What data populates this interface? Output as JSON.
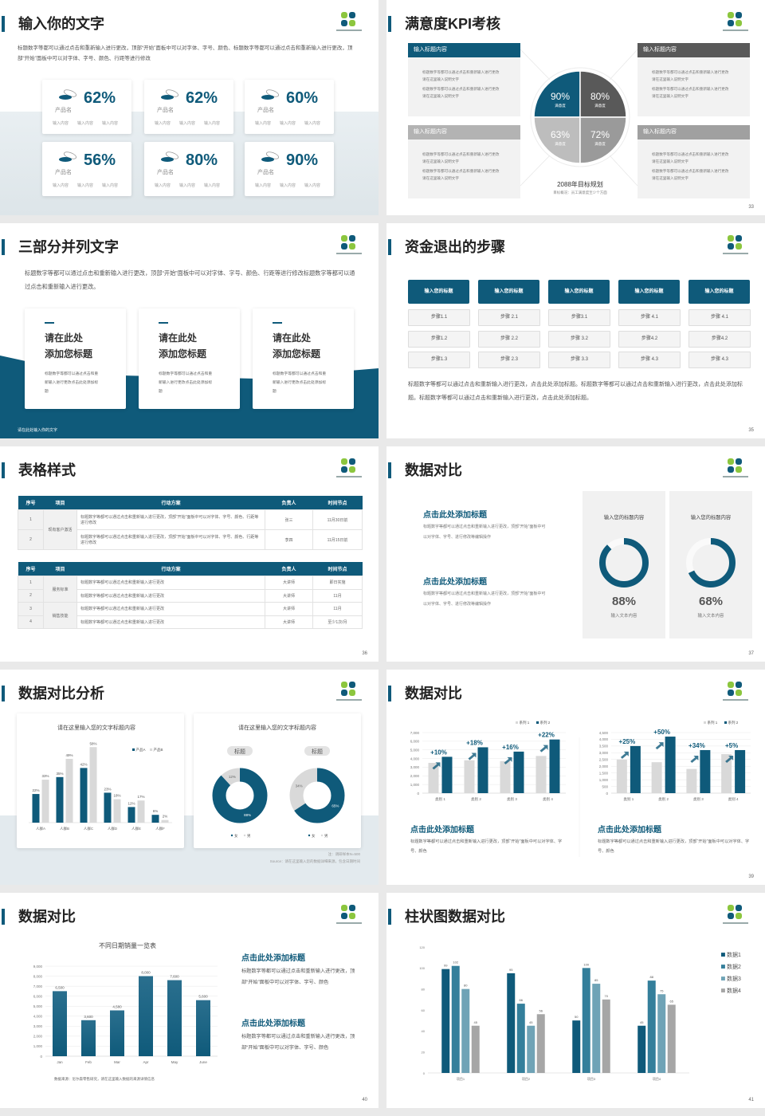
{
  "colors": {
    "primary": "#0f5a7a",
    "dark_gray": "#595959",
    "mid_gray": "#a6a6a6",
    "light_gray": "#d9d9d9",
    "logo_green": "#8cc63e"
  },
  "slides": [
    {
      "page": "32",
      "title": "输入你的文字",
      "body": "标题数字等都可以通过点击和重新输入进行更改，顶部“开始”面板中可以对字体、字号、颜色、标题数字等都可以通过点击和重新输入进行更改，顶部“开始”面板中可以对字体、字号、颜色、行距等进行修改",
      "cards": [
        {
          "value": "62%",
          "label": "产品名",
          "items": [
            "输入内容",
            "输入内容",
            "输入内容"
          ]
        },
        {
          "value": "62%",
          "label": "产品名",
          "items": [
            "输入内容",
            "输入内容",
            "输入内容"
          ]
        },
        {
          "value": "60%",
          "label": "产品名",
          "items": [
            "输入内容",
            "输入内容",
            "输入内容"
          ]
        },
        {
          "value": "56%",
          "label": "产品名",
          "items": [
            "输入内容",
            "输入内容",
            "输入内容"
          ]
        },
        {
          "value": "80%",
          "label": "产品名",
          "items": [
            "输入内容",
            "输入内容",
            "输入内容"
          ]
        },
        {
          "value": "90%",
          "label": "产品名",
          "items": [
            "输入内容",
            "输入内容",
            "输入内容"
          ]
        }
      ]
    },
    {
      "page": "33",
      "title": "满意度KPI考核",
      "boxes": [
        {
          "header": "输入标题内容",
          "color": "#0f5a7a",
          "bullets": [
            "标题数字等都可以通过点击和重新输入进行更改 请在这里输入说明文字",
            "标题数字等都可以通过点击和重新输入进行更改 请在这里输入说明文字"
          ]
        },
        {
          "header": "输入标题内容",
          "color": "#595959",
          "bullets": [
            "标题数字等都可以通过点击和重新输入进行更改 请在这里输入说明文字",
            "标题数字等都可以通过点击和重新输入进行更改 请在这里输入说明文字"
          ]
        },
        {
          "header": "输入标题内容",
          "color": "#b3b3b3",
          "bullets": [
            "标题数字等都可以通过点击和重新输入进行更改 请在这里输入说明文字",
            "标题数字等都可以通过点击和重新输入进行更改 请在这里输入说明文字"
          ]
        },
        {
          "header": "输入标题内容",
          "color": "#a0a0a0",
          "bullets": [
            "标题数字等都可以通过点击和重新输入进行更改 请在这里输入说明文字",
            "标题数字等都可以通过点击和重新输入进行更改 请在这里输入说明文字"
          ]
        }
      ],
      "pie": [
        {
          "value": "90%",
          "label": "满意度",
          "color": "#0f5a7a"
        },
        {
          "value": "80%",
          "label": "满意度",
          "color": "#595959"
        },
        {
          "value": "63%",
          "label": "满意度",
          "color": "#bdbdbd"
        },
        {
          "value": "72%",
          "label": "满意度",
          "color": "#9a9a9a"
        }
      ],
      "goal_title": "2088年目标规划",
      "goal_sub": "目标概况：员工满意度至少个方面"
    },
    {
      "page": "34",
      "title": "三部分并列文字",
      "body": "标题数字等都可以通过点击和重新输入进行更改，顶部“开始”面板中可以对字体、字号、颜色、行距等进行修改标题数字等都可以通过点击和重新输入进行更改。",
      "cards": [
        {
          "line1": "请在此处",
          "line2": "添加您标题",
          "text": "标题数字等都可以通过点击和重新输入进行更改点击此处添加标题"
        },
        {
          "line1": "请在此处",
          "line2": "添加您标题",
          "text": "标题数字等都可以通过点击和重新输入进行更改点击此处添加标题"
        },
        {
          "line1": "请在此处",
          "line2": "添加您标题",
          "text": "标题数字等都可以通过点击和重新输入进行更改点击此处添加标题"
        }
      ],
      "footer": "请在此处输入你的文字"
    },
    {
      "page": "35",
      "title": "资金退出的步骤",
      "columns": [
        {
          "header": "输入您的标题",
          "steps": [
            "步骤1.1",
            "步骤1.2",
            "步骤1.3"
          ]
        },
        {
          "header": "输入您的标题",
          "steps": [
            "步骤 2.1",
            "步骤 2.2",
            "步骤 2.3"
          ]
        },
        {
          "header": "输入您的标题",
          "steps": [
            "步骤3.1",
            "步骤 3.2",
            "步骤 3.3"
          ]
        },
        {
          "header": "输入您的标题",
          "steps": [
            "步骤 4.1",
            "步骤4.2",
            "步骤 4.3"
          ]
        },
        {
          "header": "输入您的标题",
          "steps": [
            "步骤 4.1",
            "步骤4.2",
            "步骤 4.3"
          ]
        }
      ],
      "body": "标题数字等都可以通过点击和重新输入进行更改，点击此处添加标题。标题数字等都可以通过点击和重新输入进行更改，点击此处添加标题。标题数字等都可以通过点击和重新输入进行更改，点击此处添加标题。"
    },
    {
      "page": "36",
      "title": "表格样式",
      "tables": [
        {
          "headers": [
            "序号",
            "项目",
            "行动方案",
            "负责人",
            "时间节点"
          ],
          "groups": [
            {
              "name": "现有客户激活",
              "rows": [
                {
                  "no": "1",
                  "plan": "标题数字等都可以通过点击和重新输入进行更改，顶部“开始”面板中可以对字体、字号、颜色、行距等进行修改",
                  "owner": "张三",
                  "time": "11月30日前"
                },
                {
                  "no": "2",
                  "plan": "标题数字等都可以通过点击和重新输入进行更改，顶部“开始”面板中可以对字体、字号、颜色、行距等进行修改",
                  "owner": "李四",
                  "time": "11月15日前"
                }
              ]
            }
          ]
        },
        {
          "headers": [
            "序号",
            "项目",
            "行动方案",
            "负责人",
            "时间节点"
          ],
          "groups": [
            {
              "name": "服务标准",
              "rows": [
                {
                  "no": "1",
                  "plan": "标题数字等都可以通过点击和重新输入进行更改",
                  "owner": "大讲师",
                  "time": "即日实施"
                },
                {
                  "no": "2",
                  "plan": "标题数字等都可以通过点击和重新输入进行更改",
                  "owner": "大讲师",
                  "time": "11月"
                }
              ]
            },
            {
              "name": "销售技能",
              "rows": [
                {
                  "no": "3",
                  "plan": "标题数字等都可以通过点击和重新输入进行更改",
                  "owner": "大讲师",
                  "time": "11月"
                },
                {
                  "no": "4",
                  "plan": "标题数字等都可以通过点击和重新输入进行更改",
                  "owner": "大讲师",
                  "time": "至少1次/月"
                }
              ]
            }
          ]
        }
      ]
    },
    {
      "page": "37",
      "title": "数据对比",
      "items": [
        {
          "heading": "点击此处添加标题",
          "text": "标题数字等都可以通过点击和重新输入进行更改，顶部“开始”面板中可以对字体、字号、进行修改等编辑操作"
        },
        {
          "heading": "点击此处添加标题",
          "text": "标题数字等都可以通过点击和重新输入进行更改，顶部“开始”面板中可以对字体、字号、进行修改等编辑操作"
        }
      ],
      "panels": [
        {
          "title": "输入您的标题内容",
          "percent": 88,
          "value": "88%",
          "caption": "输入文本内容"
        },
        {
          "title": "输入您的标题内容",
          "percent": 68,
          "value": "68%",
          "caption": "输入文本内容"
        }
      ]
    },
    {
      "page": "38",
      "title": "数据对比分析",
      "note": "注：调研样本N=500",
      "source": "Source：请在这里输入您的数据详细来源，包含日期时间"
    },
    {
      "page": "39",
      "title": "数据对比",
      "items": [
        {
          "heading": "点击此处添加标题",
          "text": "标题数字等都可以通过点击和重新输入进行更改，顶部“开始”面板中可以对字体、字号、颜色"
        },
        {
          "heading": "点击此处添加标题",
          "text": "标题数字等都可以通过点击和重新输入进行更改，顶部“开始”面板中可以对字体、字号、颜色"
        }
      ]
    },
    {
      "page": "40",
      "title": "数据对比",
      "items": [
        {
          "heading": "点击此处添加标题",
          "text": "标题数字等都可以通过点击和重新输入进行更改，顶部“开始”面板中可以对字体、字号、颜色"
        },
        {
          "heading": "点击此处添加标题",
          "text": "标题数字等都可以通过点击和重新输入进行更改，顶部“开始”面板中可以对字体、字号、颜色"
        }
      ]
    },
    {
      "page": "41",
      "title": "柱状图数据对比"
    }
  ],
  "chart_data": [
    {
      "type": "bar",
      "title": "请在这里输入您的文字标题内容",
      "categories": [
        "人群A",
        "人群B",
        "人群C",
        "人群D",
        "人群E",
        "人群F"
      ],
      "series": [
        {
          "name": "产品A",
          "color": "#0f5a7a",
          "values": [
            22,
            35,
            42,
            23,
            12,
            6
          ],
          "labels": [
            "22%",
            "35%",
            "42%",
            "23%",
            "12%",
            "6%"
          ]
        },
        {
          "name": "产品B",
          "color": "#d9d9d9",
          "values": [
            33,
            49,
            58,
            18,
            17,
            2
          ],
          "labels": [
            "33%",
            "49%",
            "58%",
            "18%",
            "17%",
            "2%"
          ]
        }
      ],
      "ylim": [
        0,
        60
      ],
      "legend": "top-right",
      "grid": false
    },
    {
      "type": "pie",
      "title": "请在这里输入您的文字标题内容",
      "label": "标题",
      "slices": [
        {
          "name": "女",
          "value": 88,
          "label": "88%",
          "color": "#0f5a7a"
        },
        {
          "name": "男",
          "value": 12,
          "label": "12%",
          "color": "#d9d9d9"
        }
      ],
      "legend": "bottom"
    },
    {
      "type": "pie",
      "label": "标题",
      "slices": [
        {
          "name": "女",
          "value": 65,
          "label": "65%",
          "color": "#0f5a7a"
        },
        {
          "name": "男",
          "value": 34,
          "label": "34%",
          "color": "#d9d9d9"
        }
      ],
      "legend": "bottom"
    },
    {
      "type": "bar",
      "categories": [
        "类别 1",
        "类别 2",
        "类别 3",
        "类别 4"
      ],
      "series": [
        {
          "name": "系列 1",
          "color": "#d9d9d9",
          "values": [
            3500,
            3800,
            3700,
            4300
          ]
        },
        {
          "name": "系列 2",
          "color": "#0f5a7a",
          "values": [
            4200,
            5300,
            4800,
            6200
          ]
        }
      ],
      "annotations": [
        "+10%",
        "+18%",
        "+16%",
        "+22%"
      ],
      "yticks": [
        "0",
        "1,000",
        "2,000",
        "3,000",
        "4,000",
        "5,000",
        "6,000",
        "7,000"
      ],
      "ylim": [
        0,
        7000
      ],
      "legend": "top-right",
      "grid": true
    },
    {
      "type": "bar",
      "categories": [
        "类别 1",
        "类别 2",
        "类别 3",
        "类别 4"
      ],
      "series": [
        {
          "name": "系列 1",
          "color": "#d9d9d9",
          "values": [
            2500,
            2300,
            1800,
            2900
          ]
        },
        {
          "name": "系列 2",
          "color": "#0f5a7a",
          "values": [
            3500,
            4200,
            3200,
            3200
          ]
        }
      ],
      "annotations": [
        "+25%",
        "+50%",
        "+34%",
        "+5%"
      ],
      "yticks": [
        "0",
        "500",
        "1,000",
        "1,500",
        "2,000",
        "2,500",
        "3,000",
        "3,500",
        "4,000",
        "4,500"
      ],
      "ylim": [
        0,
        4500
      ],
      "legend": "top-right",
      "grid": true
    },
    {
      "type": "bar",
      "title": "不同日期销量一览表",
      "categories": [
        "Jan",
        "Feb",
        "Mar",
        "Apr",
        "May",
        "June"
      ],
      "series": [
        {
          "color": "#0f5a7a",
          "values": [
            6500,
            3600,
            4580,
            8000,
            7600,
            5600
          ],
          "labels": [
            "6,500",
            "3,600",
            "4,580",
            "8,000",
            "7,600",
            "5,600"
          ]
        }
      ],
      "yticks": [
        "0",
        "1,000",
        "2,000",
        "3,000",
        "4,000",
        "5,000",
        "6,000",
        "7,000",
        "8,000",
        "9,000"
      ],
      "ylim": [
        0,
        9000
      ],
      "source": "数据来源：尼尔森零售研究，请在这里输入数据的来源详情信息",
      "grid": true
    },
    {
      "type": "bar",
      "categories": [
        "项目1",
        "项目2",
        "项目3",
        "项目4"
      ],
      "series": [
        {
          "name": "数据1",
          "color": "#0f5a7a",
          "values": [
            99,
            95,
            50,
            45
          ],
          "labels": [
            "99",
            "95",
            "50",
            "45"
          ]
        },
        {
          "name": "数据2",
          "color": "#347f9b",
          "values": [
            102,
            66,
            100,
            88
          ],
          "labels": [
            "102",
            "66",
            "100",
            "88"
          ]
        },
        {
          "name": "数据3",
          "color": "#6fa3b6",
          "values": [
            80,
            45,
            85,
            75
          ],
          "labels": [
            "80",
            "45",
            "85",
            "75"
          ]
        },
        {
          "name": "数据4",
          "color": "#a6a6a6",
          "values": [
            45,
            56,
            70,
            65
          ],
          "labels": [
            "45",
            "56",
            "70",
            "65"
          ]
        }
      ],
      "yticks": [
        "0",
        "20",
        "40",
        "60",
        "80",
        "100",
        "120"
      ],
      "ylim": [
        0,
        120
      ],
      "legend": "right",
      "grid": false
    }
  ]
}
